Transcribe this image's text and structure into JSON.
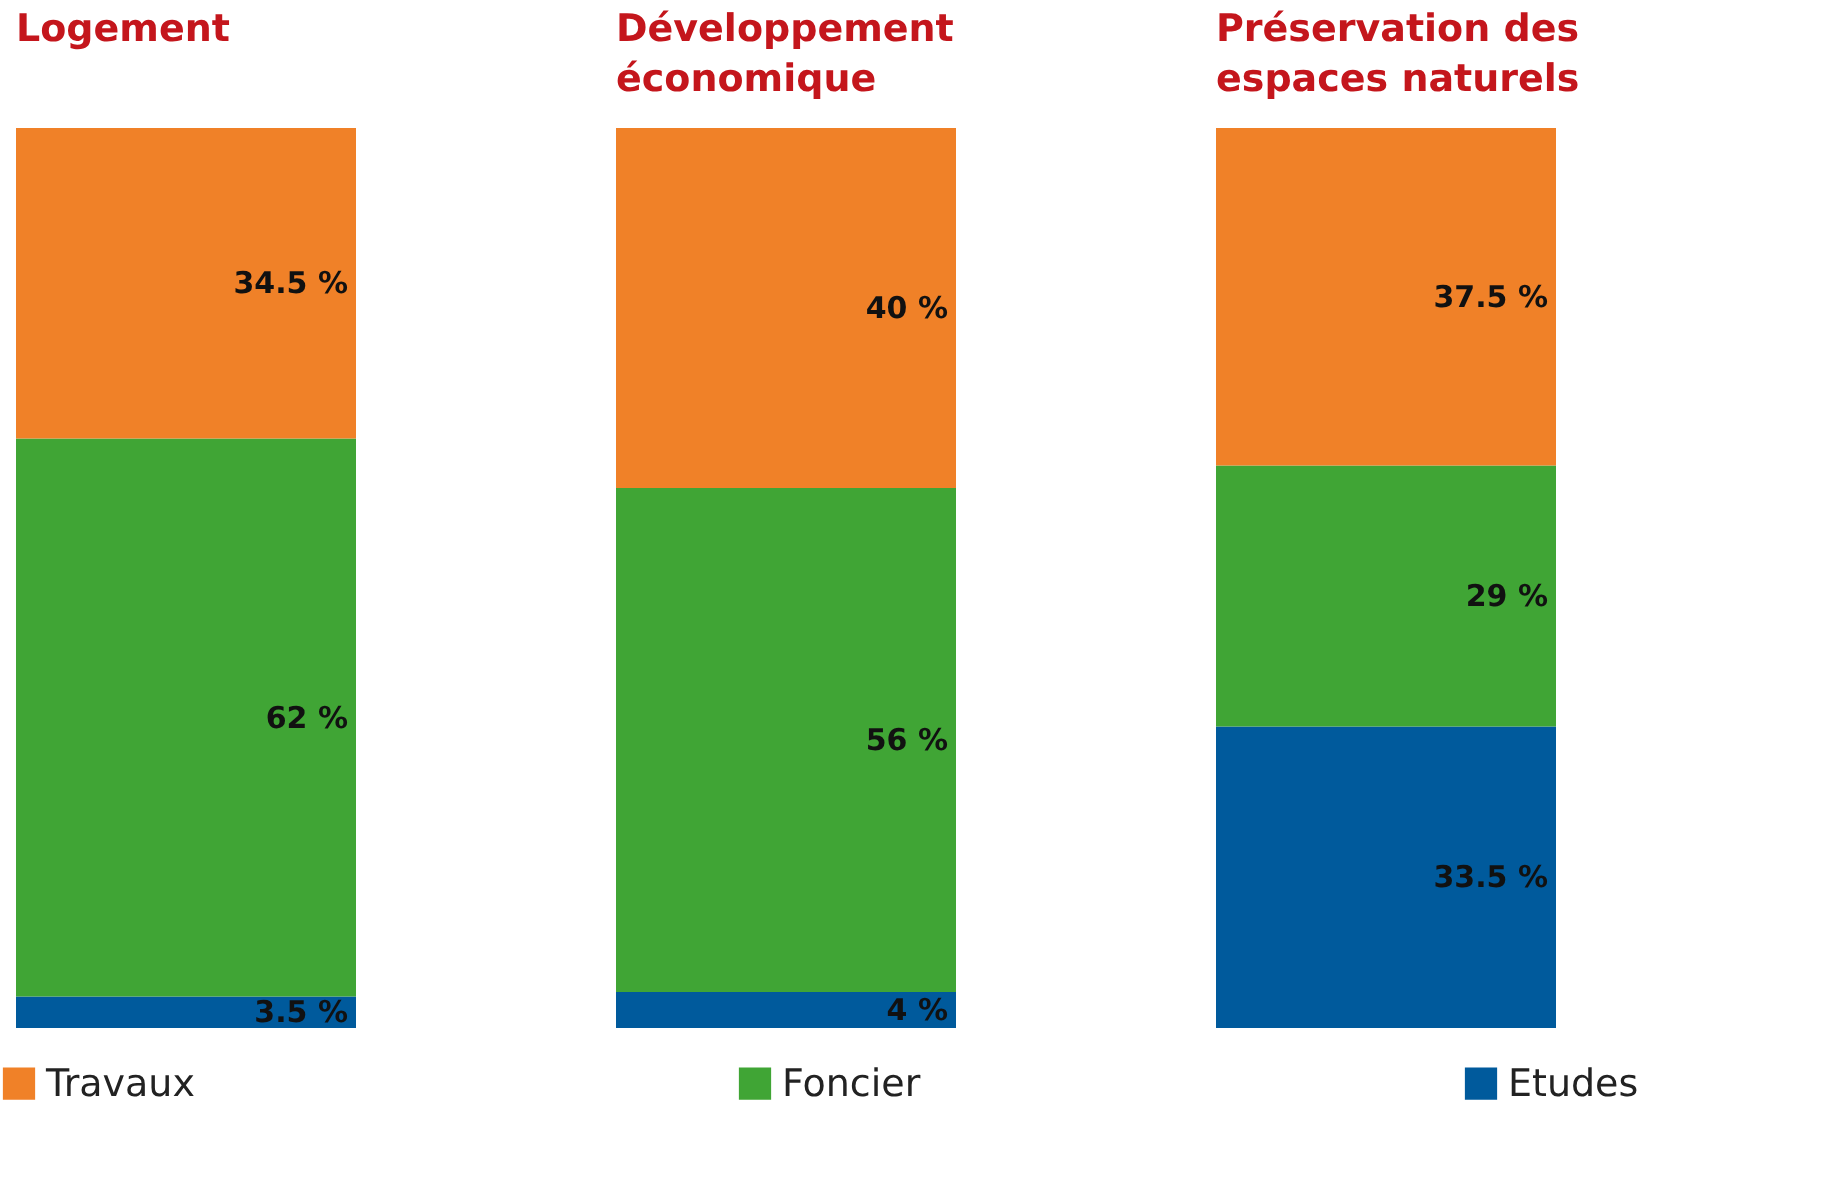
{
  "chart_data": {
    "type": "bar",
    "stacked": true,
    "categories": [
      "Logement",
      "Développement économique",
      "Préservation des espaces naturels"
    ],
    "series": [
      {
        "name": "Etudes",
        "color": "#005a9c",
        "values": [
          3.5,
          4,
          33.5
        ],
        "value_labels": [
          "3.5 %",
          "4 %",
          "33.5 %"
        ]
      },
      {
        "name": "Foncier",
        "color": "#40a535",
        "values": [
          62,
          56,
          29
        ],
        "value_labels": [
          "62 %",
          "56 %",
          "29 %"
        ]
      },
      {
        "name": "Travaux",
        "color": "#f08128",
        "values": [
          34.5,
          40,
          37.5
        ],
        "value_labels": [
          "34.5 %",
          "40 %",
          "37.5 %"
        ]
      }
    ],
    "tick_labels": "x",
    "grid": false,
    "legend": "bottom"
  }
}
